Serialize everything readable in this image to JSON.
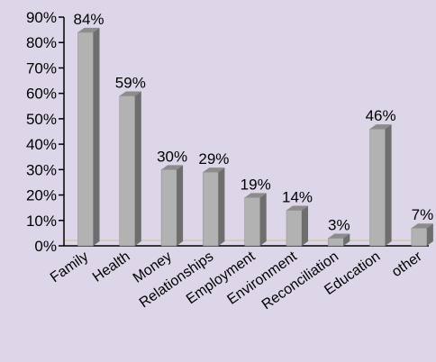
{
  "chart_data": {
    "type": "bar",
    "categories": [
      "Family",
      "Health",
      "Money",
      "Relationships",
      "Employment",
      "Environment",
      "Reconciliation",
      "Education",
      "other"
    ],
    "values": [
      84,
      59,
      30,
      29,
      19,
      14,
      3,
      46,
      7
    ],
    "value_labels": [
      "84%",
      "59%",
      "30%",
      "29%",
      "19%",
      "14%",
      "3%",
      "46%",
      "7%"
    ],
    "y_ticks": [
      0,
      10,
      20,
      30,
      40,
      50,
      60,
      70,
      80,
      90
    ],
    "y_tick_labels": [
      "0%",
      "10%",
      "20%",
      "30%",
      "40%",
      "50%",
      "60%",
      "70%",
      "80%",
      "90%"
    ],
    "ylim": [
      0,
      90
    ],
    "title": "",
    "xlabel": "",
    "ylabel": "",
    "grid": false,
    "legend": "none",
    "colors": {
      "background": "#dcd6e8",
      "bar_front": "#b2b2b2",
      "bar_side": "#6e6e6e",
      "bar_top": "#8c8c8c",
      "floor_line": "#c9c38a",
      "axis": "#000000"
    }
  }
}
